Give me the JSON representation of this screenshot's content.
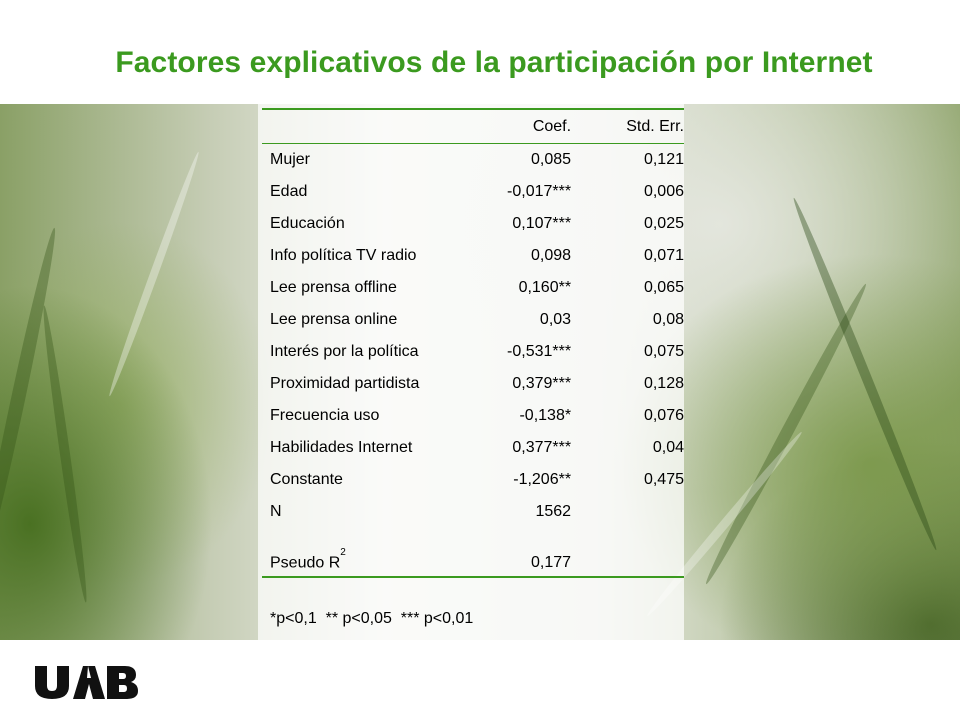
{
  "title": "Factores explicativos de la participación por Internet",
  "table": {
    "headers": [
      "",
      "Coef.",
      "Std. Err."
    ],
    "rows": [
      {
        "name": "Mujer",
        "coef": "0,085",
        "se": "0,121"
      },
      {
        "name": "Edad",
        "coef": "-0,017***",
        "se": "0,006"
      },
      {
        "name": "Educación",
        "coef": "0,107***",
        "se": "0,025"
      },
      {
        "name": "Info política TV radio",
        "coef": "0,098",
        "se": "0,071"
      },
      {
        "name": "Lee prensa offline",
        "coef": "0,160**",
        "se": "0,065"
      },
      {
        "name": "Lee prensa online",
        "coef": "0,03",
        "se": "0,08"
      },
      {
        "name": "Interés por la política",
        "coef": "-0,531***",
        "se": "0,075"
      },
      {
        "name": "Proximidad partidista",
        "coef": "0,379***",
        "se": "0,128"
      },
      {
        "name": "Frecuencia uso",
        "coef": "-0,138*",
        "se": "0,076"
      },
      {
        "name": "Habilidades Internet",
        "coef": "0,377***",
        "se": "0,04"
      },
      {
        "name": "Constante",
        "coef": "-1,206**",
        "se": "0,475"
      },
      {
        "name": "N",
        "coef": "1562",
        "se": ""
      }
    ],
    "pseudo_r2": {
      "name": "Pseudo R",
      "sup": "2",
      "coef": "0,177",
      "se": ""
    }
  },
  "note": "*p<0,1  ** p<0,05  *** p<0,01",
  "logo": {
    "text": "UAB"
  },
  "colors": {
    "accent": "#3b9a1f"
  }
}
